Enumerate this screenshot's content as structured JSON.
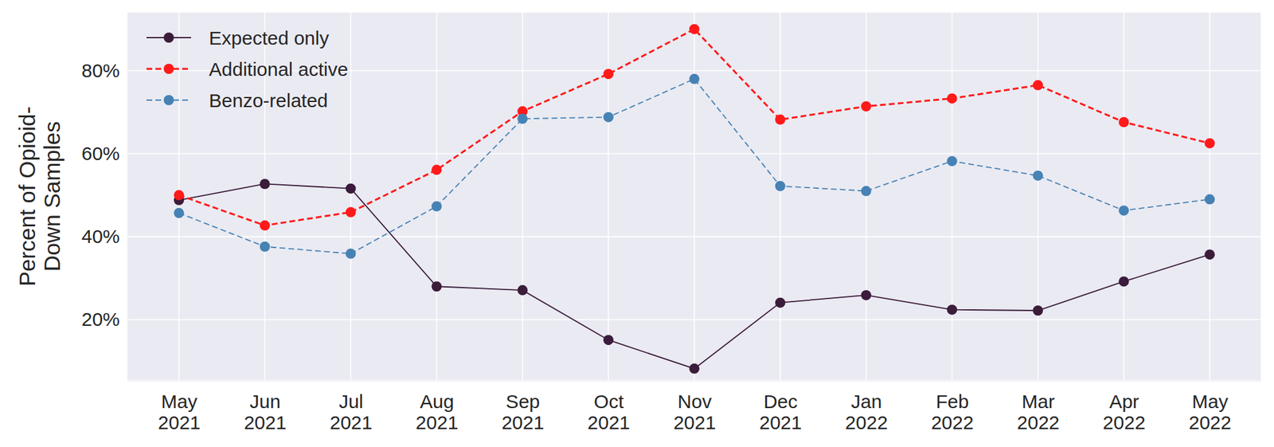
{
  "chart_data": {
    "type": "line",
    "y_label": "Percent of Opioid-\nDown Samples",
    "categories": [
      "May\n2021",
      "Jun\n2021",
      "Jul\n2021",
      "Aug\n2021",
      "Sep\n2021",
      "Oct\n2021",
      "Nov\n2021",
      "Dec\n2021",
      "Jan\n2022",
      "Feb\n2022",
      "Mar\n2022",
      "Apr\n2022",
      "May\n2022"
    ],
    "series": [
      {
        "name": "Expected only",
        "color": "#3b1c3a",
        "line_style": "solid",
        "marker": "circle",
        "values": [
          48.8,
          52.7,
          51.6,
          28.0,
          27.1,
          15.1,
          8.2,
          24.1,
          25.9,
          22.4,
          22.2,
          29.2,
          35.7
        ]
      },
      {
        "name": "Additional active",
        "color": "#ff1a1a",
        "line_style": "dashed",
        "marker": "circle",
        "values": [
          50.0,
          42.7,
          45.9,
          56.1,
          70.2,
          79.2,
          90.0,
          68.2,
          71.4,
          73.3,
          76.5,
          67.6,
          62.5
        ]
      },
      {
        "name": "Benzo-related",
        "color": "#4682b4",
        "line_style": "dashed",
        "marker": "circle",
        "values": [
          45.7,
          37.6,
          35.9,
          47.3,
          68.4,
          68.8,
          78.0,
          52.2,
          51.0,
          58.2,
          54.7,
          46.3,
          49.0
        ]
      }
    ],
    "ylim": [
      5.3,
      94.1
    ],
    "yticks": [
      {
        "value": 20,
        "label": "20%"
      },
      {
        "value": 40,
        "label": "40%"
      },
      {
        "value": 60,
        "label": "60%"
      },
      {
        "value": 80,
        "label": "80%"
      }
    ],
    "grid": true,
    "legend": "upper-left"
  }
}
